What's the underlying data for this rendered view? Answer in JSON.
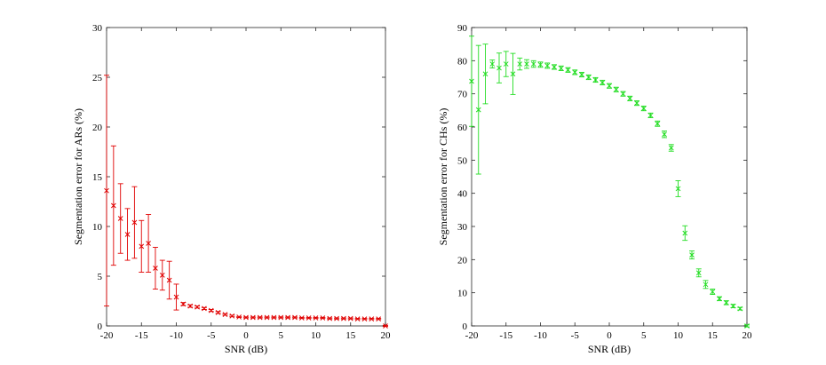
{
  "chart_data": [
    {
      "type": "scatter",
      "xlabel": "SNR (dB)",
      "ylabel": "Segmentation error for ARs (%)",
      "xlim": [
        -20,
        20
      ],
      "ylim": [
        0,
        30
      ],
      "xticks": [
        "-20",
        "-15",
        "-10",
        "-5",
        "0",
        "5",
        "10",
        "15",
        "20"
      ],
      "yticks": [
        "0",
        "5",
        "10",
        "15",
        "20",
        "25",
        "30"
      ],
      "grid": false,
      "color": "#e00000",
      "marker": "x",
      "series": [
        {
          "x": [
            -20,
            -19,
            -18,
            -17,
            -16,
            -15,
            -14,
            -13,
            -12,
            -11,
            -10,
            -9,
            -8,
            -7,
            -6,
            -5,
            -4,
            -3,
            -2,
            -1,
            0,
            1,
            2,
            3,
            4,
            5,
            6,
            7,
            8,
            9,
            10,
            11,
            12,
            13,
            14,
            15,
            16,
            17,
            18,
            19,
            20
          ],
          "y": [
            13.6,
            12.1,
            10.8,
            9.2,
            10.4,
            8.0,
            8.3,
            5.8,
            5.1,
            4.6,
            2.9,
            2.2,
            2.0,
            1.9,
            1.75,
            1.55,
            1.35,
            1.15,
            1.0,
            0.9,
            0.85,
            0.85,
            0.85,
            0.85,
            0.85,
            0.85,
            0.85,
            0.85,
            0.8,
            0.8,
            0.8,
            0.8,
            0.75,
            0.75,
            0.75,
            0.75,
            0.7,
            0.7,
            0.7,
            0.7,
            0.0
          ],
          "err": [
            11.6,
            6.0,
            3.5,
            2.6,
            3.6,
            2.6,
            2.9,
            2.1,
            1.5,
            1.9,
            1.3,
            0.15,
            0.12,
            0.1,
            0.1,
            0.1,
            0.1,
            0.08,
            0.08,
            0.05,
            0.05,
            0.05,
            0.05,
            0.05,
            0.05,
            0.05,
            0.05,
            0.05,
            0.05,
            0.05,
            0.05,
            0.05,
            0.05,
            0.05,
            0.05,
            0.05,
            0.05,
            0.05,
            0.05,
            0.05,
            0.05
          ]
        }
      ]
    },
    {
      "type": "scatter",
      "xlabel": "SNR (dB)",
      "ylabel": "Segmentation error for CHs (%)",
      "xlim": [
        -20,
        20
      ],
      "ylim": [
        0,
        90
      ],
      "xticks": [
        "-20",
        "-15",
        "-10",
        "-5",
        "0",
        "5",
        "10",
        "15",
        "20"
      ],
      "yticks": [
        "0",
        "10",
        "20",
        "30",
        "40",
        "50",
        "60",
        "70",
        "80",
        "90"
      ],
      "grid": false,
      "color": "#22dd22",
      "marker": "x",
      "series": [
        {
          "x": [
            -20,
            -19,
            -18,
            -17,
            -16,
            -15,
            -14,
            -13,
            -12,
            -11,
            -10,
            -9,
            -8,
            -7,
            -6,
            -5,
            -4,
            -3,
            -2,
            -1,
            0,
            1,
            2,
            3,
            4,
            5,
            6,
            7,
            8,
            9,
            10,
            11,
            12,
            13,
            14,
            15,
            16,
            17,
            18,
            19,
            20
          ],
          "y": [
            73.8,
            65.2,
            76.0,
            79.0,
            77.8,
            79.0,
            76.0,
            79.0,
            79.0,
            79.0,
            78.8,
            78.5,
            78.1,
            77.7,
            77.2,
            76.5,
            75.8,
            75.0,
            74.2,
            73.4,
            72.4,
            71.3,
            70.0,
            68.6,
            67.2,
            65.6,
            63.5,
            61.0,
            57.8,
            53.7,
            41.4,
            28.0,
            21.4,
            16.0,
            12.5,
            10.3,
            8.2,
            7.0,
            6.0,
            5.2,
            0.0
          ],
          "err": [
            13.6,
            19.4,
            9.0,
            1.2,
            4.5,
            3.8,
            6.2,
            1.8,
            1.3,
            1.0,
            0.8,
            0.8,
            0.7,
            0.7,
            0.7,
            0.7,
            0.7,
            0.7,
            0.7,
            0.7,
            0.7,
            0.7,
            0.7,
            0.7,
            0.7,
            0.7,
            0.7,
            0.8,
            1.0,
            1.0,
            2.4,
            2.2,
            1.2,
            1.2,
            1.2,
            0.8,
            0.6,
            0.6,
            0.5,
            0.4,
            0.3
          ]
        }
      ]
    }
  ]
}
